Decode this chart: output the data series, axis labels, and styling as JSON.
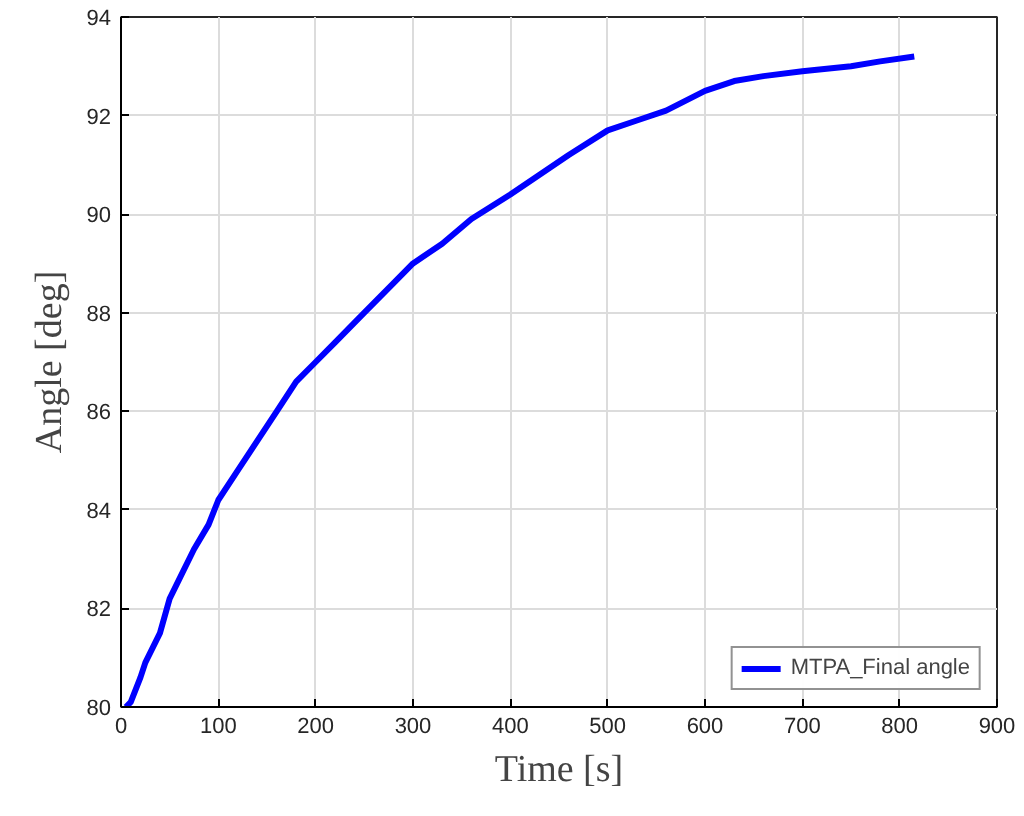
{
  "chart_data": {
    "type": "line",
    "xlabel": "Time [s]",
    "ylabel": "Angle [deg]",
    "x": [
      5,
      10,
      20,
      25,
      40,
      50,
      60,
      75,
      90,
      100,
      120,
      140,
      160,
      180,
      200,
      220,
      250,
      280,
      300,
      330,
      360,
      400,
      430,
      460,
      500,
      530,
      560,
      600,
      630,
      660,
      700,
      750,
      780,
      815
    ],
    "series": [
      {
        "name": "MTPA_Final angle",
        "color": "#0000ff",
        "values": [
          80.0,
          80.1,
          80.6,
          80.9,
          81.5,
          82.2,
          82.6,
          83.2,
          83.7,
          84.2,
          84.8,
          85.4,
          86.0,
          86.6,
          87.0,
          87.4,
          88.0,
          88.6,
          89.0,
          89.4,
          89.9,
          90.4,
          90.8,
          91.2,
          91.7,
          91.9,
          92.1,
          92.5,
          92.7,
          92.8,
          92.9,
          93.0,
          93.1,
          93.2
        ]
      }
    ],
    "xlim": [
      0,
      900
    ],
    "ylim": [
      80,
      94
    ],
    "xticks": [
      0,
      100,
      200,
      300,
      400,
      500,
      600,
      700,
      800,
      900
    ],
    "yticks": [
      80,
      82,
      84,
      86,
      88,
      90,
      92,
      94
    ],
    "grid": true,
    "legend": "bottom right",
    "line_style": "solid"
  }
}
